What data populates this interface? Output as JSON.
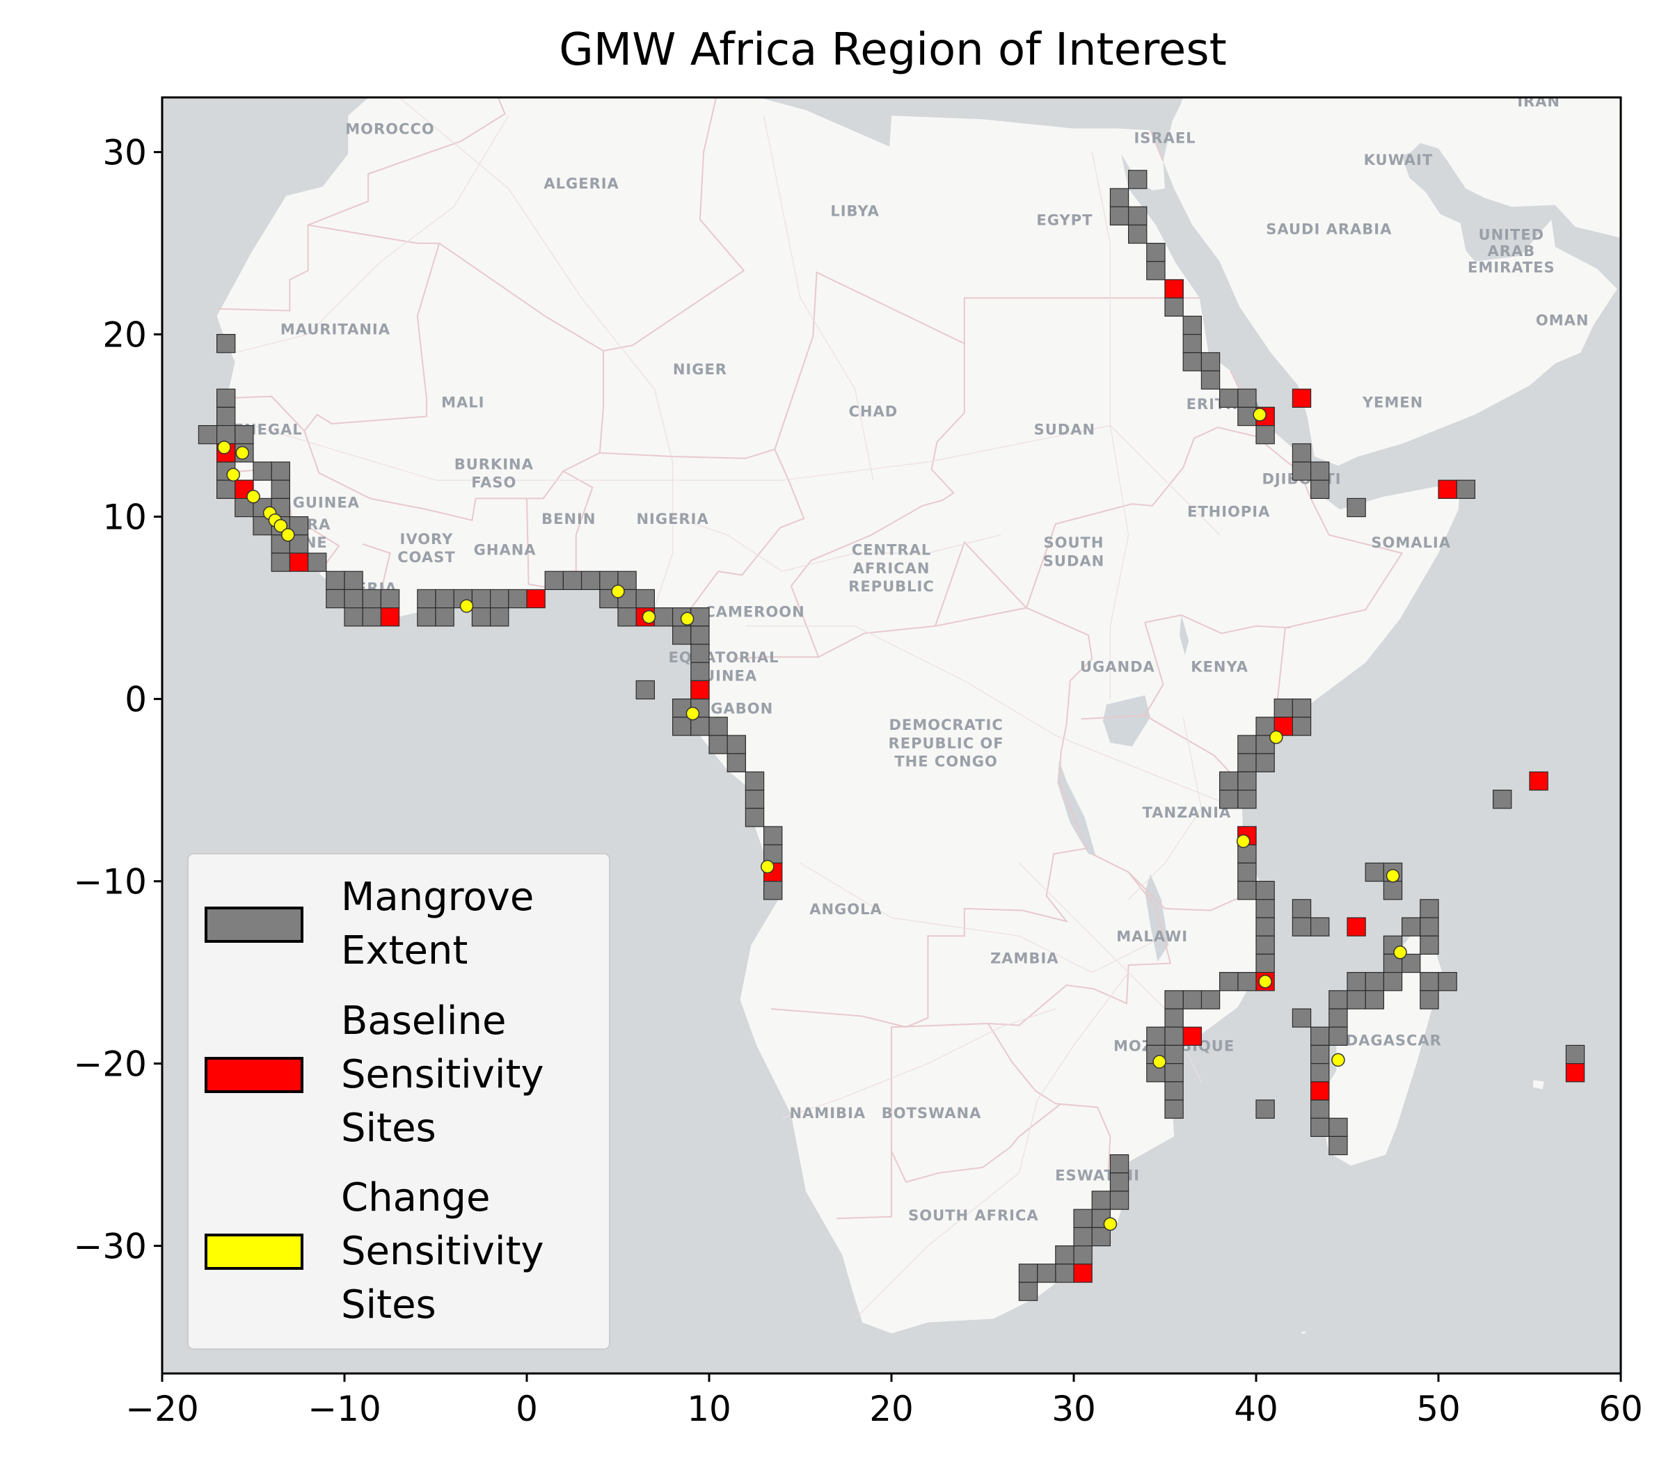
{
  "chart_data": {
    "type": "map-scatter",
    "title": "GMW Africa Region of Interest",
    "xlim": [
      -20,
      60
    ],
    "ylim": [
      -37,
      33
    ],
    "xticks": [
      -20,
      -10,
      0,
      10,
      20,
      30,
      40,
      50,
      60
    ],
    "yticks": [
      30,
      20,
      10,
      0,
      -10,
      -20,
      -30
    ],
    "tick_labels_x": [
      "−20",
      "−10",
      "0",
      "10",
      "20",
      "30",
      "40",
      "50",
      "60"
    ],
    "tick_labels_y": [
      "30",
      "20",
      "10",
      "0",
      "−10",
      "−20",
      "−30"
    ],
    "cell_size_deg": 1,
    "colors": {
      "mangrove": "#7f7f7f",
      "baseline": "#ff0000",
      "change": "#ffff00",
      "ocean": "#d4d8db",
      "land": "#f7f7f6"
    },
    "legend": {
      "position": "lower-left",
      "entries": [
        {
          "key": "mangrove",
          "lines": [
            "Mangrove",
            "Extent"
          ]
        },
        {
          "key": "baseline",
          "lines": [
            "Baseline",
            "Sensitivity",
            "Sites"
          ]
        },
        {
          "key": "change",
          "lines": [
            "Change",
            "Sensitivity",
            "Sites"
          ]
        }
      ]
    },
    "mangrove_extent": [
      [
        -17,
        19
      ],
      [
        -17,
        16
      ],
      [
        -17,
        15
      ],
      [
        -18,
        14
      ],
      [
        -17,
        14
      ],
      [
        -16,
        14
      ],
      [
        -17,
        13
      ],
      [
        -16,
        13
      ],
      [
        -17,
        12
      ],
      [
        -15,
        12
      ],
      [
        -14,
        12
      ],
      [
        -17,
        11
      ],
      [
        -16,
        11
      ],
      [
        -14,
        11
      ],
      [
        -16,
        10
      ],
      [
        -15,
        10
      ],
      [
        -14,
        10
      ],
      [
        -15,
        9
      ],
      [
        -14,
        9
      ],
      [
        -13,
        9
      ],
      [
        -14,
        8
      ],
      [
        -13,
        8
      ],
      [
        -14,
        7
      ],
      [
        -12,
        7
      ],
      [
        -11,
        6
      ],
      [
        -10,
        6
      ],
      [
        -11,
        5
      ],
      [
        -10,
        5
      ],
      [
        -9,
        5
      ],
      [
        -8,
        5
      ],
      [
        -6,
        5
      ],
      [
        -5,
        5
      ],
      [
        -4,
        5
      ],
      [
        -3,
        5
      ],
      [
        -2,
        5
      ],
      [
        -1,
        5
      ],
      [
        -10,
        4
      ],
      [
        -9,
        4
      ],
      [
        -6,
        4
      ],
      [
        -5,
        4
      ],
      [
        -3,
        4
      ],
      [
        -2,
        4
      ],
      [
        1,
        6
      ],
      [
        2,
        6
      ],
      [
        3,
        6
      ],
      [
        4,
        6
      ],
      [
        5,
        6
      ],
      [
        4,
        5
      ],
      [
        5,
        5
      ],
      [
        6,
        5
      ],
      [
        5,
        4
      ],
      [
        7,
        4
      ],
      [
        8,
        4
      ],
      [
        9,
        4
      ],
      [
        8,
        3
      ],
      [
        9,
        3
      ],
      [
        9,
        2
      ],
      [
        9,
        1
      ],
      [
        9,
        0
      ],
      [
        8,
        -1
      ],
      [
        9,
        -1
      ],
      [
        8,
        -2
      ],
      [
        9,
        -2
      ],
      [
        10,
        -2
      ],
      [
        10,
        -3
      ],
      [
        11,
        -3
      ],
      [
        11,
        -4
      ],
      [
        12,
        -5
      ],
      [
        12,
        -6
      ],
      [
        12,
        -7
      ],
      [
        13,
        -8
      ],
      [
        13,
        -9
      ],
      [
        13,
        -11
      ],
      [
        6,
        0
      ],
      [
        33,
        28
      ],
      [
        32,
        27
      ],
      [
        32,
        26
      ],
      [
        33,
        26
      ],
      [
        33,
        25
      ],
      [
        34,
        24
      ],
      [
        34,
        23
      ],
      [
        35,
        22
      ],
      [
        35,
        21
      ],
      [
        36,
        20
      ],
      [
        36,
        19
      ],
      [
        36,
        18
      ],
      [
        37,
        18
      ],
      [
        37,
        17
      ],
      [
        38,
        16
      ],
      [
        39,
        16
      ],
      [
        39,
        15
      ],
      [
        40,
        15
      ],
      [
        40,
        14
      ],
      [
        42,
        13
      ],
      [
        42,
        12
      ],
      [
        43,
        12
      ],
      [
        43,
        11
      ],
      [
        45,
        10
      ],
      [
        51,
        11
      ],
      [
        41,
        -1
      ],
      [
        42,
        -1
      ],
      [
        40,
        -2
      ],
      [
        41,
        -2
      ],
      [
        42,
        -2
      ],
      [
        39,
        -3
      ],
      [
        40,
        -3
      ],
      [
        39,
        -4
      ],
      [
        40,
        -4
      ],
      [
        38,
        -5
      ],
      [
        39,
        -5
      ],
      [
        38,
        -6
      ],
      [
        39,
        -6
      ],
      [
        39,
        -8
      ],
      [
        39,
        -9
      ],
      [
        39,
        -10
      ],
      [
        39,
        -11
      ],
      [
        40,
        -11
      ],
      [
        40,
        -12
      ],
      [
        40,
        -13
      ],
      [
        40,
        -14
      ],
      [
        40,
        -15
      ],
      [
        39,
        -16
      ],
      [
        38,
        -16
      ],
      [
        37,
        -17
      ],
      [
        36,
        -17
      ],
      [
        35,
        -17
      ],
      [
        35,
        -18
      ],
      [
        34,
        -19
      ],
      [
        35,
        -19
      ],
      [
        34,
        -20
      ],
      [
        35,
        -20
      ],
      [
        34,
        -21
      ],
      [
        35,
        -21
      ],
      [
        35,
        -22
      ],
      [
        35,
        -23
      ],
      [
        40,
        -23
      ],
      [
        42,
        -12
      ],
      [
        42,
        -13
      ],
      [
        43,
        -13
      ],
      [
        46,
        -10
      ],
      [
        47,
        -10
      ],
      [
        47,
        -11
      ],
      [
        49,
        -12
      ],
      [
        48,
        -13
      ],
      [
        49,
        -13
      ],
      [
        47,
        -14
      ],
      [
        49,
        -14
      ],
      [
        47,
        -15
      ],
      [
        48,
        -15
      ],
      [
        45,
        -16
      ],
      [
        46,
        -16
      ],
      [
        47,
        -16
      ],
      [
        49,
        -16
      ],
      [
        50,
        -16
      ],
      [
        44,
        -17
      ],
      [
        45,
        -17
      ],
      [
        46,
        -17
      ],
      [
        49,
        -17
      ],
      [
        42,
        -18
      ],
      [
        44,
        -18
      ],
      [
        43,
        -19
      ],
      [
        44,
        -19
      ],
      [
        43,
        -20
      ],
      [
        43,
        -21
      ],
      [
        43,
        -22
      ],
      [
        43,
        -23
      ],
      [
        43,
        -24
      ],
      [
        44,
        -24
      ],
      [
        44,
        -25
      ],
      [
        53,
        -6
      ],
      [
        57,
        -20
      ],
      [
        32,
        -26
      ],
      [
        32,
        -27
      ],
      [
        32,
        -28
      ],
      [
        31,
        -28
      ],
      [
        31,
        -29
      ],
      [
        30,
        -29
      ],
      [
        30,
        -30
      ],
      [
        31,
        -30
      ],
      [
        30,
        -31
      ],
      [
        29,
        -31
      ],
      [
        29,
        -32
      ],
      [
        28,
        -32
      ],
      [
        27,
        -32
      ],
      [
        27,
        -33
      ]
    ],
    "baseline_sites": [
      [
        -17,
        13
      ],
      [
        -16,
        11
      ],
      [
        -13,
        7
      ],
      [
        -8,
        4
      ],
      [
        0,
        5
      ],
      [
        6,
        4
      ],
      [
        9,
        0
      ],
      [
        13,
        -10
      ],
      [
        35,
        22
      ],
      [
        40,
        15
      ],
      [
        42,
        16
      ],
      [
        50,
        11
      ],
      [
        41,
        -2
      ],
      [
        39,
        -8
      ],
      [
        40,
        -16
      ],
      [
        36,
        -19
      ],
      [
        30,
        -32
      ],
      [
        43,
        -22
      ],
      [
        45,
        -13
      ],
      [
        55,
        -5
      ],
      [
        57,
        -21
      ]
    ],
    "change_sites": [
      [
        -16.6,
        13.8
      ],
      [
        -15.6,
        13.5
      ],
      [
        -16.1,
        12.3
      ],
      [
        -15.0,
        11.1
      ],
      [
        -14.1,
        10.2
      ],
      [
        -13.8,
        9.8
      ],
      [
        -13.5,
        9.5
      ],
      [
        -13.1,
        9.0
      ],
      [
        -3.3,
        5.1
      ],
      [
        5.0,
        5.9
      ],
      [
        6.7,
        4.5
      ],
      [
        8.8,
        4.4
      ],
      [
        9.1,
        -0.8
      ],
      [
        13.2,
        -9.2
      ],
      [
        40.2,
        15.6
      ],
      [
        41.1,
        -2.1
      ],
      [
        39.3,
        -7.8
      ],
      [
        40.5,
        -15.5
      ],
      [
        34.7,
        -19.9
      ],
      [
        32.0,
        -28.8
      ],
      [
        44.5,
        -19.8
      ],
      [
        47.5,
        -9.7
      ],
      [
        47.9,
        -13.9
      ]
    ],
    "place_labels": [
      {
        "text": "MOROCCO",
        "lon": -7.5,
        "lat": 31.0
      },
      {
        "text": "ALGERIA",
        "lon": 3.0,
        "lat": 28.0
      },
      {
        "text": "LIBYA",
        "lon": 18.0,
        "lat": 26.5
      },
      {
        "text": "EGYPT",
        "lon": 29.5,
        "lat": 26.0
      },
      {
        "text": "ISRAEL",
        "lon": 35.0,
        "lat": 30.5
      },
      {
        "text": "IRAN",
        "lon": 55.5,
        "lat": 32.5
      },
      {
        "text": "KUWAIT",
        "lon": 47.8,
        "lat": 29.3
      },
      {
        "text": "SAUDI ARABIA",
        "lon": 44.0,
        "lat": 25.5
      },
      {
        "text": "UNITED",
        "lon": 54.0,
        "lat": 25.2
      },
      {
        "text": "ARAB",
        "lon": 54.0,
        "lat": 24.3
      },
      {
        "text": "EMIRATES",
        "lon": 54.0,
        "lat": 23.4
      },
      {
        "text": "OMAN",
        "lon": 56.8,
        "lat": 20.5
      },
      {
        "text": "MAURITANIA",
        "lon": -10.5,
        "lat": 20.0
      },
      {
        "text": "MALI",
        "lon": -3.5,
        "lat": 16.0
      },
      {
        "text": "NIGER",
        "lon": 9.5,
        "lat": 17.8
      },
      {
        "text": "CHAD",
        "lon": 19.0,
        "lat": 15.5
      },
      {
        "text": "SUDAN",
        "lon": 29.5,
        "lat": 14.5
      },
      {
        "text": "ERITREA",
        "lon": 38.2,
        "lat": 15.9
      },
      {
        "text": "YEMEN",
        "lon": 47.5,
        "lat": 16.0
      },
      {
        "text": "DJIBOUTI",
        "lon": 42.5,
        "lat": 11.8
      },
      {
        "text": "ETHIOPIA",
        "lon": 38.5,
        "lat": 10.0
      },
      {
        "text": "SOMALIA",
        "lon": 48.5,
        "lat": 8.3
      },
      {
        "text": "SENEGAL",
        "lon": -14.5,
        "lat": 14.5
      },
      {
        "text": "BURKINA",
        "lon": -1.8,
        "lat": 12.6
      },
      {
        "text": "FASO",
        "lon": -1.8,
        "lat": 11.6
      },
      {
        "text": "GUINEA",
        "lon": -11.0,
        "lat": 10.5
      },
      {
        "text": "SIERRA",
        "lon": -12.5,
        "lat": 9.3
      },
      {
        "text": "LEONE",
        "lon": -12.5,
        "lat": 8.3
      },
      {
        "text": "IVORY",
        "lon": -5.5,
        "lat": 8.5
      },
      {
        "text": "COAST",
        "lon": -5.5,
        "lat": 7.5
      },
      {
        "text": "GHANA",
        "lon": -1.2,
        "lat": 7.9
      },
      {
        "text": "LIBERIA",
        "lon": -9.0,
        "lat": 5.8
      },
      {
        "text": "BENIN",
        "lon": 2.3,
        "lat": 9.6
      },
      {
        "text": "NIGERIA",
        "lon": 8.0,
        "lat": 9.6
      },
      {
        "text": "CAMEROON",
        "lon": 12.5,
        "lat": 4.5
      },
      {
        "text": "CENTRAL",
        "lon": 20.0,
        "lat": 7.9
      },
      {
        "text": "AFRICAN",
        "lon": 20.0,
        "lat": 6.9
      },
      {
        "text": "REPUBLIC",
        "lon": 20.0,
        "lat": 5.9
      },
      {
        "text": "SOUTH",
        "lon": 30.0,
        "lat": 8.3
      },
      {
        "text": "SUDAN",
        "lon": 30.0,
        "lat": 7.3
      },
      {
        "text": "EQUATORIAL",
        "lon": 10.8,
        "lat": 2.0
      },
      {
        "text": "GUINEA",
        "lon": 10.8,
        "lat": 1.0
      },
      {
        "text": "GABON",
        "lon": 11.8,
        "lat": -0.8
      },
      {
        "text": "UGANDA",
        "lon": 32.4,
        "lat": 1.5
      },
      {
        "text": "KENYA",
        "lon": 38.0,
        "lat": 1.5
      },
      {
        "text": "DEMOCRATIC",
        "lon": 23.0,
        "lat": -1.7
      },
      {
        "text": "REPUBLIC OF",
        "lon": 23.0,
        "lat": -2.7
      },
      {
        "text": "THE CONGO",
        "lon": 23.0,
        "lat": -3.7
      },
      {
        "text": "TANZANIA",
        "lon": 36.2,
        "lat": -6.5
      },
      {
        "text": "ANGOLA",
        "lon": 17.5,
        "lat": -11.8
      },
      {
        "text": "MALAWI",
        "lon": 34.3,
        "lat": -13.3
      },
      {
        "text": "ZAMBIA",
        "lon": 27.3,
        "lat": -14.5
      },
      {
        "text": "MOZAMBIQUE",
        "lon": 35.5,
        "lat": -19.3
      },
      {
        "text": "MADAGASCAR",
        "lon": 46.8,
        "lat": -19.0
      },
      {
        "text": "NAMIBIA",
        "lon": 16.5,
        "lat": -23.0
      },
      {
        "text": "BOTSWANA",
        "lon": 22.2,
        "lat": -23.0
      },
      {
        "text": "ESWATINI",
        "lon": 31.3,
        "lat": -26.4
      },
      {
        "text": "SOUTH AFRICA",
        "lon": 24.5,
        "lat": -28.6
      }
    ]
  }
}
